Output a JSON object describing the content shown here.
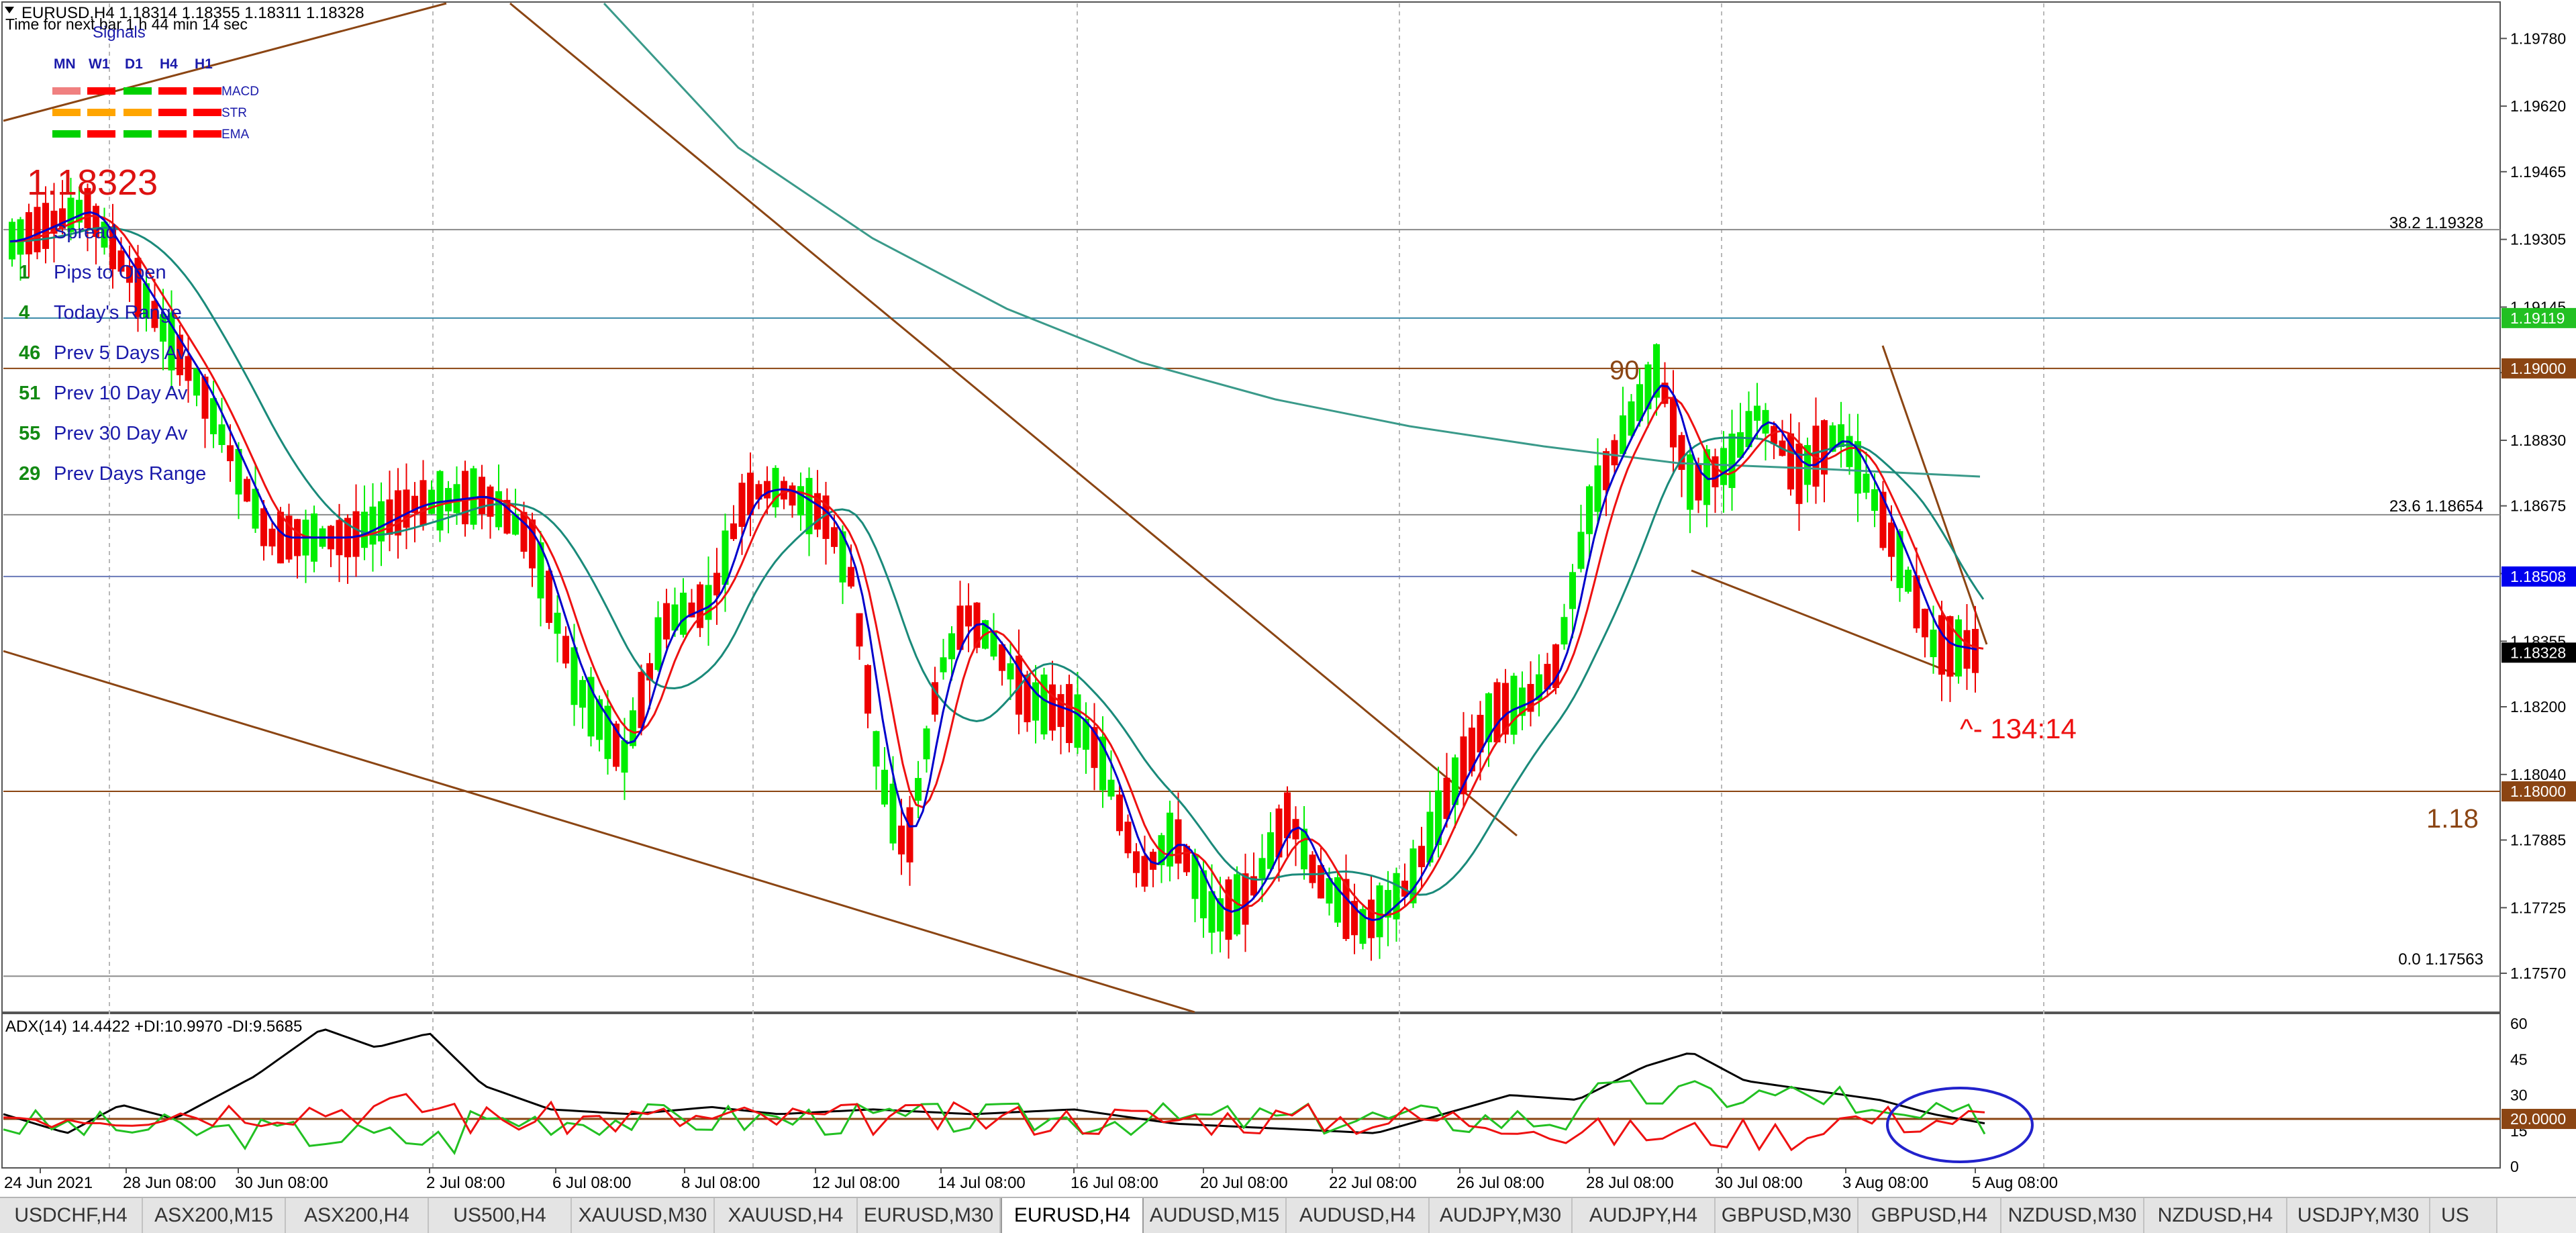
{
  "window": {
    "symbol_info": "EURUSD,H4  1.18314 1.18355 1.18311 1.18328",
    "next_bar": "Time for next bar 1 h 44 min 14 sec"
  },
  "signals": {
    "title": "Signals",
    "timeframes": [
      "MN",
      "W1",
      "D1",
      "H4",
      "H1"
    ],
    "rows": [
      {
        "label": "MACD",
        "colors": [
          "#f08080",
          "#ff0000",
          "#00d000",
          "#ff0000",
          "#ff0000"
        ]
      },
      {
        "label": "STR",
        "colors": [
          "#ffa500",
          "#ffa500",
          "#ffa500",
          "#ff0000",
          "#ff0000"
        ]
      },
      {
        "label": "EMA",
        "colors": [
          "#00d000",
          "#ff0000",
          "#00d000",
          "#ff0000",
          "#ff0000"
        ]
      }
    ]
  },
  "info_panel": {
    "price": "1.18323",
    "items": [
      {
        "value": "",
        "label": "Spread"
      },
      {
        "value": "1",
        "label": "Pips to Open"
      },
      {
        "value": "4",
        "label": "Today's Range"
      },
      {
        "value": "46",
        "label": "Prev 5 Days Av"
      },
      {
        "value": "51",
        "label": "Prev 10 Day Av"
      },
      {
        "value": "55",
        "label": "Prev 30 Day Av"
      },
      {
        "value": "29",
        "label": "Prev Days Range"
      }
    ]
  },
  "annotations": {
    "count_label": "90",
    "countdown": "^- 134:14",
    "level_label": "1.18",
    "fib_382": "38.2  1.19328",
    "fib_236": "23.6  1.18654",
    "fib_0": "0.0  1.17563"
  },
  "price_axis": {
    "ticks": [
      "1.19780",
      "1.19620",
      "1.19465",
      "1.19305",
      "1.19145",
      "1.18990",
      "1.18830",
      "1.18675",
      "1.18515",
      "1.18355",
      "1.18200",
      "1.18040",
      "1.17885",
      "1.17725",
      "1.17570"
    ],
    "tick_values": [
      1.1978,
      1.1962,
      1.19465,
      1.19305,
      1.19145,
      1.1899,
      1.1883,
      1.18675,
      1.18515,
      1.18355,
      1.182,
      1.1804,
      1.17885,
      1.17725,
      1.1757
    ],
    "range": [
      1.17478,
      1.19863
    ],
    "badges": [
      {
        "value": 1.19119,
        "text": "1.19119",
        "color": "#22c022"
      },
      {
        "value": 1.19,
        "text": "1.19000",
        "color": "#8b4513"
      },
      {
        "value": 1.18508,
        "text": "1.18508",
        "color": "#0000ee"
      },
      {
        "value": 1.18328,
        "text": "1.18328",
        "color": "#000000"
      },
      {
        "value": 1.18,
        "text": "1.18000",
        "color": "#8b4513"
      }
    ],
    "hlines": [
      {
        "value": 1.19328,
        "color": "#8a8a8a"
      },
      {
        "value": 1.19119,
        "color": "#3a8aa8"
      },
      {
        "value": 1.19,
        "color": "#8b4513"
      },
      {
        "value": 1.18654,
        "color": "#8a8a8a"
      },
      {
        "value": 1.18508,
        "color": "#6a7ab8"
      },
      {
        "value": 1.18,
        "color": "#8b4513"
      },
      {
        "value": 1.17563,
        "color": "#8a8a8a"
      }
    ]
  },
  "time_axis": {
    "labels": [
      "24 Jun 2021",
      "28 Jun 08:00",
      "30 Jun 08:00",
      "2 Jul 08:00",
      "6 Jul 08:00",
      "8 Jul 08:00",
      "12 Jul 08:00",
      "14 Jul 08:00",
      "16 Jul 08:00",
      "20 Jul 08:00",
      "22 Jul 08:00",
      "26 Jul 08:00",
      "28 Jul 08:00",
      "30 Jul 08:00",
      "3 Aug 08:00",
      "5 Aug 08:00"
    ]
  },
  "indicator": {
    "title": "ADX(14) 14.4422 +DI:10.9970 -DI:9.5685",
    "ticks": [
      "60",
      "45",
      "30",
      "15",
      "0"
    ],
    "tick_values": [
      60,
      45,
      30,
      15,
      0
    ],
    "level_badge": "20.0000",
    "level_value": 20,
    "range": [
      0,
      62
    ],
    "colors": {
      "adx": "#000000",
      "plus_di": "#22c022",
      "minus_di": "#ee1111",
      "level": "#8b4513",
      "ellipse": "#2222cc"
    }
  },
  "colors": {
    "bull": "#00ee00",
    "bear": "#ee0000",
    "ma_fast": "#ee1111",
    "ma_mid": "#0000cc",
    "ma_slow": "#1a8a7a",
    "ma_long": "#3a9a8a",
    "trend": "#8b4513"
  },
  "tabs": [
    "USDCHF,H4",
    "ASX200,M15",
    "ASX200,H4",
    "US500,H4",
    "XAUUSD,M30",
    "XAUUSD,H4",
    "EURUSD,M30",
    "EURUSD,H4",
    "AUDUSD,M15",
    "AUDUSD,H4",
    "AUDJPY,M30",
    "AUDJPY,H4",
    "GBPUSD,M30",
    "GBPUSD,H4",
    "NZDUSD,M30",
    "NZDUSD,H4",
    "USDJPY,M30",
    "US"
  ],
  "active_tab": "EURUSD,H4"
}
